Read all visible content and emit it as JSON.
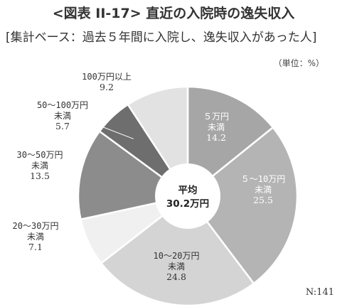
{
  "title": "<図表 II-17> 直近の入院時の逸失収入",
  "subtitle": "[集計ベース：過去５年間に入院し、逸失収入があった人]",
  "unit_label": "（単位：%）",
  "n_label": "N:141",
  "chart_data": {
    "type": "pie",
    "variant": "donut",
    "start_angle_deg": 0,
    "direction": "clockwise",
    "center_label": [
      "平均",
      "30.2万円"
    ],
    "slices": [
      {
        "label": [
          "５万円",
          "未満"
        ],
        "value": 14.2,
        "value_label": "14.2",
        "color": "#a6a6a6",
        "text_color": "#ffffff"
      },
      {
        "label": [
          "５～10万円",
          "未満"
        ],
        "value": 25.5,
        "value_label": "25.5",
        "color": "#b4b4b4",
        "text_color": "#ffffff"
      },
      {
        "label": [
          "10～20万円",
          "未満"
        ],
        "value": 24.8,
        "value_label": "24.8",
        "color": "#d4d4d4",
        "text_color": "#333333"
      },
      {
        "label": [
          "20～30万円",
          "未満"
        ],
        "value": 7.1,
        "value_label": "7.1",
        "color": "#f0f0f0",
        "text_color": "#333333"
      },
      {
        "label": [
          "30～50万円",
          "未満"
        ],
        "value": 13.5,
        "value_label": "13.5",
        "color": "#8c8c8c",
        "text_color": "#333333"
      },
      {
        "label": [
          "50～100万円",
          "未満"
        ],
        "value": 5.7,
        "value_label": "5.7",
        "color": "#6e6e6e",
        "text_color": "#333333"
      },
      {
        "label": [
          "100万円以上"
        ],
        "value": 9.2,
        "value_label": "9.2",
        "color": "#e2e2e2",
        "text_color": "#333333"
      }
    ]
  }
}
